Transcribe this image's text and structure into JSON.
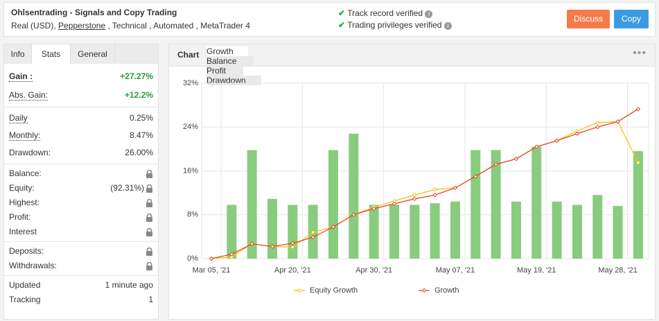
{
  "header": {
    "title": "Ohlsentrading - Signals and Copy Trading",
    "subtitle_parts": [
      "Real (USD),",
      "Pepperstone",
      ", Technical , Automated , MetaTrader 4"
    ],
    "verifications": [
      "Track record verified",
      "Trading privileges verified"
    ],
    "buttons": [
      "Discuss",
      "Copy"
    ]
  },
  "left_tabs": [
    "Info",
    "Stats",
    "General"
  ],
  "active_left_tab": 1,
  "stats": [
    [
      {
        "label": "Gain :",
        "value": "+27.27%",
        "underline": true,
        "bold": true,
        "positive": true
      },
      {
        "label": "Abs. Gain:",
        "value": "+12.2%",
        "underline": true,
        "positive": true
      }
    ],
    [
      {
        "label": "Daily",
        "value": "0.25%",
        "underline": true
      },
      {
        "label": "Monthly:",
        "value": "8.47%",
        "underline": true
      },
      {
        "label": "Drawdown:",
        "value": "26.00%"
      }
    ],
    [
      {
        "label": "Balance:",
        "locked": true
      },
      {
        "label": "Equity:",
        "value": "(92.31%)",
        "locked": true
      },
      {
        "label": "Highest:",
        "locked": true
      },
      {
        "label": "Profit:",
        "locked": true
      },
      {
        "label": "Interest",
        "locked": true
      }
    ],
    [
      {
        "label": "Deposits:",
        "locked": true
      },
      {
        "label": "Withdrawals:",
        "locked": true
      }
    ],
    [
      {
        "label": "Updated",
        "value": "1 minute ago"
      },
      {
        "label": "Tracking",
        "value": "1"
      }
    ]
  ],
  "chart_label": "Chart",
  "chart_tabs": [
    "Growth",
    "Balance",
    "Profit",
    "Drawdown"
  ],
  "active_chart_tab": 0,
  "chart_data": {
    "type": "combo",
    "categories": [
      "Mar 05, '21",
      null,
      null,
      null,
      "Apr 20, '21",
      null,
      null,
      null,
      "Apr 30, '21",
      null,
      null,
      null,
      "May 07, '21",
      null,
      null,
      null,
      "May 19, '21",
      null,
      null,
      null,
      "May 28, '21",
      null
    ],
    "series": [
      {
        "type": "bar",
        "color": "#88cc7d",
        "values": [
          null,
          9.8,
          19.8,
          10.9,
          9.8,
          9.8,
          19.8,
          22.8,
          9.8,
          9.8,
          9.8,
          10.1,
          10.4,
          19.8,
          19.8,
          10.4,
          20.4,
          10.4,
          9.8,
          11.6,
          9.6,
          19.6
        ]
      },
      {
        "type": "line",
        "name": "Equity Growth",
        "color": "#f2c40f",
        "marker": "circle",
        "values": [
          0,
          0.3,
          2.7,
          2.2,
          2.1,
          4.8,
          5.8,
          8.0,
          9.4,
          10.5,
          11.6,
          12.6,
          12.9,
          15.0,
          17.2,
          18.2,
          20.4,
          21.5,
          23.3,
          24.8,
          25.0,
          17.5
        ]
      },
      {
        "type": "line",
        "name": "Growth",
        "color": "#e8452c",
        "marker": "diamond",
        "values": [
          0,
          0.8,
          2.7,
          2.2,
          2.8,
          3.9,
          5.8,
          8.0,
          9.1,
          10.0,
          10.9,
          11.6,
          12.9,
          15.0,
          17.2,
          18.2,
          20.4,
          21.5,
          22.8,
          24.0,
          25.0,
          27.3
        ]
      }
    ],
    "ylim": [
      0,
      32
    ],
    "yticks": [
      {
        "value": 0,
        "label": "0%"
      },
      {
        "value": 8,
        "label": "8%"
      },
      {
        "value": 16,
        "label": "16%"
      },
      {
        "value": 24,
        "label": "24%"
      },
      {
        "value": 32,
        "label": "32%"
      }
    ],
    "grid": true,
    "legend": "bottom"
  }
}
